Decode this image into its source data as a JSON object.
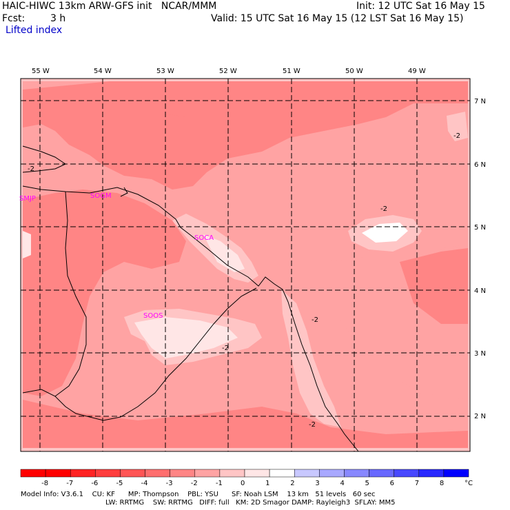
{
  "header": {
    "title": "HAIC-HIWC 13km ARW-GFS init   NCAR/MMM",
    "init": "Init: 12 UTC Sat 16 May 15",
    "fcst_label": "Fcst:",
    "fcst_value": "3 h",
    "valid": "Valid: 15 UTC Sat 16 May 15 (12 LST Sat 16 May 15)",
    "field": "Lifted index"
  },
  "map": {
    "lon_labels": [
      "55 W",
      "54 W",
      "53 W",
      "52 W",
      "51 W",
      "50 W",
      "49 W"
    ],
    "lat_labels": [
      "7 N",
      "6 N",
      "5 N",
      "4 N",
      "3 N",
      "2 N"
    ],
    "stations": [
      "SMJP",
      "SOGM",
      "SOCA",
      "SOOS"
    ],
    "contour_labels": [
      "-2",
      "-2",
      "-2",
      "-2",
      "-2",
      "-2"
    ]
  },
  "colorbar": {
    "ticks": [
      "-8",
      "-7",
      "-6",
      "-5",
      "-4",
      "-3",
      "-2",
      "-1",
      "0",
      "1",
      "2",
      "3",
      "4",
      "5",
      "6",
      "7",
      "8"
    ],
    "unit": "°C",
    "colors": [
      "#ff0000",
      "#ff2222",
      "#ff3d3d",
      "#ff5555",
      "#ff6e6e",
      "#ff8585",
      "#ffa3a3",
      "#ffc5c5",
      "#ffe6e6",
      "#ffffff",
      "#c8c8ff",
      "#a8a8ff",
      "#8888ff",
      "#6868ff",
      "#4848ff",
      "#2828ff",
      "#0000ff"
    ]
  },
  "footer": {
    "line1": "Model Info: V3.6.1    CU: KF      MP: Thompson    PBL: YSU      SF: Noah LSM    13 km   51 levels   60 sec",
    "line2": "LW: RRTMG    SW: RRTMG   DIFF: full   KM: 2D Smagor DAMP: Rayleigh3  SFLAY: MM5"
  }
}
